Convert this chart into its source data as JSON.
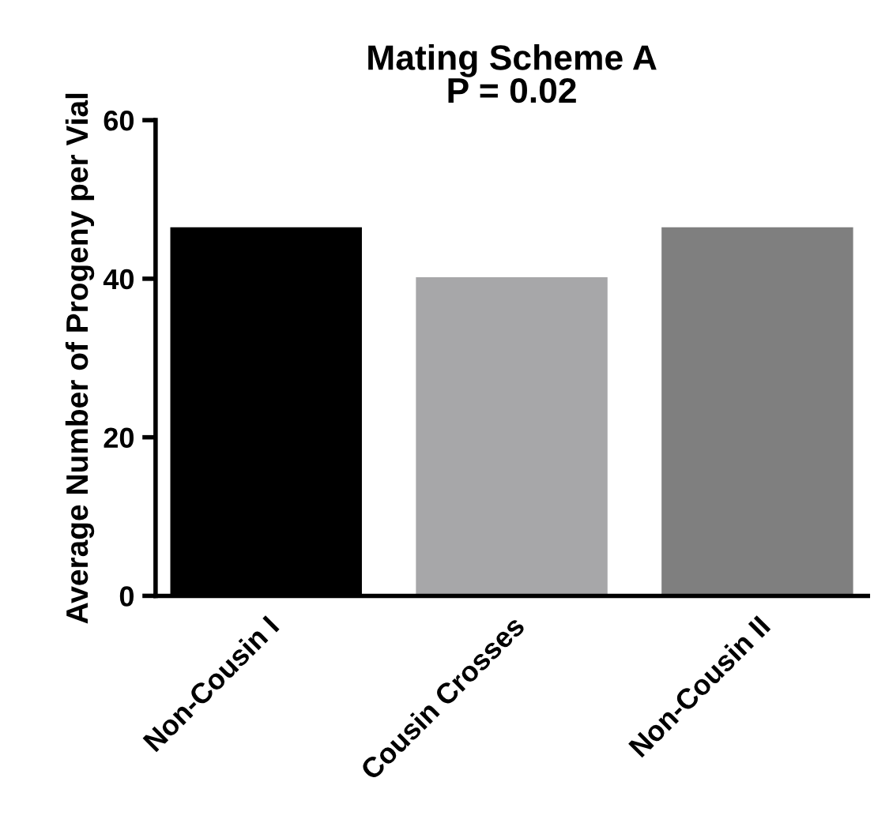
{
  "chart_data": {
    "type": "bar",
    "title": "Mating Scheme A\nP = 0.02",
    "ylabel": "Average Number of Progeny per Vial",
    "categories": [
      "Non-Cousin I",
      "Cousin Crosses",
      "Non-Cousin II"
    ],
    "values": [
      46.5,
      40.2,
      46.5
    ],
    "colors": [
      "#000000",
      "#a7a7a9",
      "#7f7f7f"
    ],
    "ylim": [
      0,
      60
    ],
    "yticks": [
      0,
      20,
      40,
      60
    ],
    "grid": false
  }
}
